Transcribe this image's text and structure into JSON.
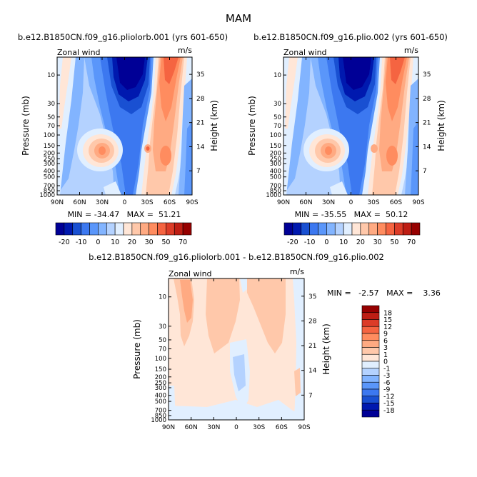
{
  "page_title": "MAM",
  "panels": [
    {
      "title": "b.e12.B1850CN.f09_g16.pliolorb.001 (yrs 601-650)",
      "left_label": "Zonal wind",
      "right_label": "m/s",
      "stats": "MIN = -34.47   MAX =  51.21"
    },
    {
      "title": "b.e12.B1850CN.f09_g16.plio.002 (yrs 601-650)",
      "left_label": "Zonal wind",
      "right_label": "m/s",
      "stats": "MIN = -35.55   MAX =  50.12"
    },
    {
      "title": "b.e12.B1850CN.f09_g16.pliolorb.001 - b.e12.B1850CN.f09_g16.plio.002",
      "left_label": "Zonal wind",
      "right_label": "m/s",
      "stats": "MIN =   -2.57   MAX =    3.36"
    }
  ],
  "axes": {
    "ylabel": "Pressure (mb)",
    "y2label": "Height (km)",
    "x_ticks": [
      "90N",
      "60N",
      "30N",
      "0",
      "30S",
      "60S",
      "90S"
    ],
    "p_ticks": [
      "10",
      "30",
      "50",
      "70",
      "100",
      "150",
      "200",
      "250",
      "300",
      "400",
      "500",
      "700",
      "850",
      "1000"
    ],
    "h_ticks": [
      "35",
      "28",
      "21",
      "14",
      "7"
    ]
  },
  "colorbar_main": {
    "labels": [
      "-20",
      "-10",
      "0",
      "10",
      "20",
      "30",
      "50",
      "70"
    ],
    "colors": [
      "#000096",
      "#0019af",
      "#1950d2",
      "#3c78f0",
      "#5a96fa",
      "#82b4ff",
      "#b4d2ff",
      "#e1efff",
      "#ffe6d7",
      "#ffc8aa",
      "#ffaa82",
      "#ff8c5f",
      "#f56441",
      "#dc3c28",
      "#be1e14",
      "#960000"
    ]
  },
  "colorbar_diff": {
    "labels": [
      "18",
      "15",
      "12",
      "9",
      "6",
      "3",
      "1",
      "0",
      "-1",
      "-3",
      "-6",
      "-9",
      "-12",
      "-15",
      "-18"
    ],
    "colors": [
      "#960000",
      "#be1e14",
      "#dc3c28",
      "#f56441",
      "#ff8c5f",
      "#ffaa82",
      "#ffc8aa",
      "#ffe6d7",
      "#e1efff",
      "#b4d2ff",
      "#82b4ff",
      "#5a96fa",
      "#3c78f0",
      "#1950d2",
      "#0019af",
      "#000096"
    ]
  },
  "chart_data": [
    {
      "type": "heatmap",
      "title": "b.e12.B1850CN.f09_g16.pliolorb.001 (yrs 601-650)",
      "variable": "Zonal wind",
      "units": "m/s",
      "x": [
        "90N",
        "60N",
        "30N",
        "0",
        "30S",
        "60S",
        "90S"
      ],
      "y_pressure_mb": [
        10,
        30,
        50,
        70,
        100,
        150,
        200,
        250,
        300,
        400,
        500,
        700,
        850,
        1000
      ],
      "y_height_km": [
        35,
        28,
        21,
        14,
        7
      ],
      "min": -34.47,
      "max": 51.21,
      "features": [
        {
          "name": "tropical stratospheric easterlies",
          "lat": 0,
          "p": 10,
          "value": -30
        },
        {
          "name": "NH subtropical jet",
          "lat": 30,
          "p": 150,
          "value": 30
        },
        {
          "name": "SH subtropical jet",
          "lat": -30,
          "p": 150,
          "value": 30
        },
        {
          "name": "SH polar night jet",
          "lat": -58,
          "p": 10,
          "value": 50
        }
      ]
    },
    {
      "type": "heatmap",
      "title": "b.e12.B1850CN.f09_g16.plio.002 (yrs 601-650)",
      "variable": "Zonal wind",
      "units": "m/s",
      "x": [
        "90N",
        "60N",
        "30N",
        "0",
        "30S",
        "60S",
        "90S"
      ],
      "y_pressure_mb": [
        10,
        30,
        50,
        70,
        100,
        150,
        200,
        250,
        300,
        400,
        500,
        700,
        850,
        1000
      ],
      "y_height_km": [
        35,
        28,
        21,
        14,
        7
      ],
      "min": -35.55,
      "max": 50.12,
      "features": [
        {
          "name": "tropical stratospheric easterlies",
          "lat": 0,
          "p": 10,
          "value": -30
        },
        {
          "name": "NH subtropical jet",
          "lat": 30,
          "p": 150,
          "value": 30
        },
        {
          "name": "SH subtropical jet",
          "lat": -30,
          "p": 150,
          "value": 30
        },
        {
          "name": "SH polar night jet",
          "lat": -58,
          "p": 10,
          "value": 50
        }
      ]
    },
    {
      "type": "heatmap",
      "title": "b.e12.B1850CN.f09_g16.pliolorb.001 - b.e12.B1850CN.f09_g16.plio.002",
      "variable": "Zonal wind",
      "units": "m/s",
      "x": [
        "90N",
        "60N",
        "30N",
        "0",
        "30S",
        "60S",
        "90S"
      ],
      "y_pressure_mb": [
        10,
        30,
        50,
        70,
        100,
        150,
        200,
        250,
        300,
        400,
        500,
        700,
        850,
        1000
      ],
      "y_height_km": [
        35,
        28,
        21,
        14,
        7
      ],
      "min": -2.57,
      "max": 3.36,
      "features": [
        {
          "name": "positive band",
          "lat": 75,
          "p": 10,
          "value": 3
        },
        {
          "name": "positive band",
          "lat": -40,
          "p": 30,
          "value": 1
        },
        {
          "name": "negative pocket",
          "lat": 5,
          "p": 150,
          "value": -1
        }
      ]
    }
  ]
}
